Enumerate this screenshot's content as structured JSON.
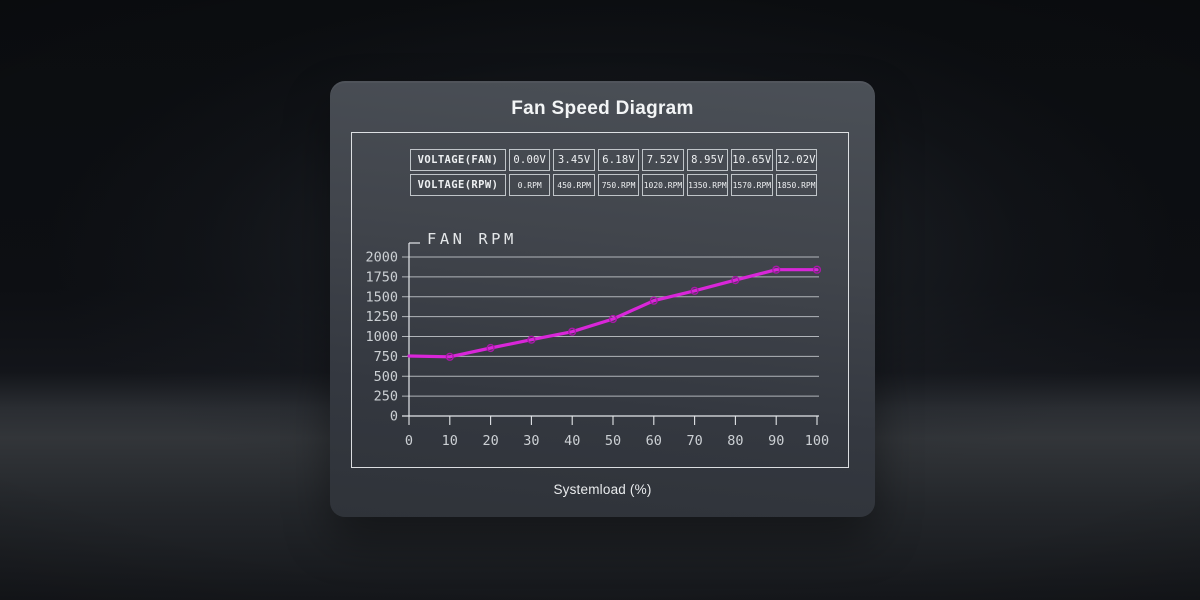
{
  "card": {
    "title": "Fan Speed Diagram",
    "xlabel": "Systemload (%)"
  },
  "table": {
    "rows": [
      {
        "label": "VOLTAGE(FAN)",
        "unit_class": "volt",
        "values": [
          "0.00V",
          "3.45V",
          "6.18V",
          "7.52V",
          "8.95V",
          "10.65V",
          "12.02V"
        ]
      },
      {
        "label": "VOLTAGE(RPW)",
        "unit_class": "rpm",
        "values": [
          "0.RPM",
          "450.RPM",
          "750.RPM",
          "1020.RPM",
          "1350.RPM",
          "1570.RPM",
          "1850.RPM"
        ]
      }
    ]
  },
  "chart_data": {
    "type": "line",
    "title": "FAN RPM",
    "xlabel": "Systemload (%)",
    "ylabel": "FAN RPM",
    "x": [
      0,
      10,
      20,
      30,
      40,
      50,
      60,
      70,
      80,
      90,
      100
    ],
    "series": [
      {
        "name": "Fan RPM",
        "values": [
          755,
          745,
          855,
          960,
          1060,
          1220,
          1450,
          1575,
          1710,
          1840,
          1840
        ]
      }
    ],
    "xlim": [
      0,
      100
    ],
    "ylim": [
      0,
      2000
    ],
    "ytick_step": 250,
    "grid": true,
    "legend": "none"
  },
  "colors": {
    "line": "#d926d9",
    "marker_ring": "#aa18aa",
    "grid": "#cfd3d7",
    "axis": "#e3e6e9",
    "tick_label": "#ccd0d4",
    "chart_title": "#e4e7e9"
  }
}
